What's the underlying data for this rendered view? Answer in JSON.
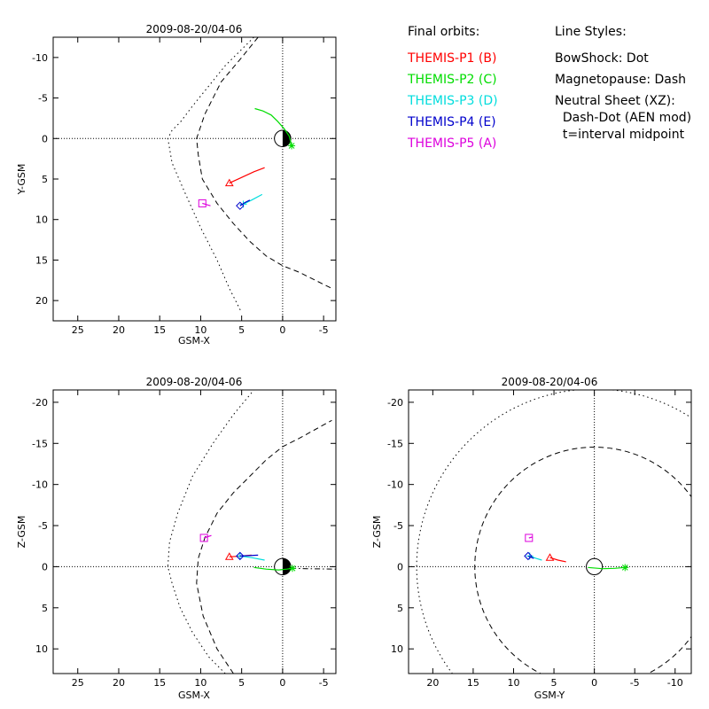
{
  "legend": {
    "orbits_title": "Final orbits:",
    "probes": [
      {
        "label": "THEMIS-P1 (B)",
        "color": "#ff0000"
      },
      {
        "label": "THEMIS-P2 (C)",
        "color": "#00dd00"
      },
      {
        "label": "THEMIS-P3 (D)",
        "color": "#00dddd"
      },
      {
        "label": "THEMIS-P4 (E)",
        "color": "#0000cc"
      },
      {
        "label": "THEMIS-P5 (A)",
        "color": "#dd00dd"
      }
    ],
    "styles_title": "Line Styles:",
    "styles": [
      "BowShock: Dot",
      "Magnetopause: Dash",
      "Neutral Sheet (XZ):",
      "  Dash-Dot (AEN mod)",
      "  t=interval midpoint"
    ]
  },
  "chart_data": [
    {
      "id": "xy",
      "type": "line",
      "title": "2009-08-20/04-06",
      "xlabel": "GSM-X",
      "ylabel": "Y-GSM",
      "xlim": [
        28,
        -6.5
      ],
      "ylim": [
        -12.5,
        22.5
      ],
      "xticks": [
        25,
        20,
        15,
        10,
        5,
        0,
        -5
      ],
      "yticks": [
        -10,
        -5,
        0,
        5,
        10,
        15,
        20
      ],
      "earth": true,
      "boundaries": [
        {
          "name": "bowshock",
          "style": "dot",
          "x": [
            3.5,
            5,
            7,
            9,
            11,
            12.5,
            13.5,
            14,
            13.5,
            12,
            10,
            8,
            6.5,
            5
          ],
          "y": [
            -12.5,
            -11,
            -9,
            -6.5,
            -4,
            -2,
            -1,
            0,
            3,
            6.5,
            11,
            15,
            18.5,
            21.5
          ]
        },
        {
          "name": "magnetopause",
          "style": "dash",
          "x": [
            3,
            5,
            7.5,
            9.5,
            10.5,
            10.3,
            9.8,
            8,
            6,
            4,
            2,
            0,
            -2,
            -4,
            -6
          ],
          "y": [
            -12.5,
            -10,
            -7,
            -3,
            0,
            2,
            5,
            8,
            10.5,
            12.7,
            14.5,
            15.7,
            16.5,
            17.5,
            18.5
          ]
        }
      ],
      "orbits": [
        {
          "probe": 0,
          "x": [
            6.5,
            5,
            3.5,
            2.2
          ],
          "y": [
            5.5,
            4.8,
            4.1,
            3.6
          ],
          "marker": "triangle"
        },
        {
          "probe": 1,
          "x": [
            3.4,
            2.4,
            1.4,
            0.6,
            -0.2,
            -0.8,
            -1.1
          ],
          "y": [
            -3.7,
            -3.4,
            -2.9,
            -2.1,
            -1.2,
            -0.3,
            0.9
          ],
          "marker": "star"
        },
        {
          "probe": 2,
          "x": [
            4.8,
            3.8,
            2.5
          ],
          "y": [
            8.1,
            7.6,
            6.9
          ],
          "marker": "plus"
        },
        {
          "probe": 3,
          "x": [
            5.2,
            4.6,
            4.0
          ],
          "y": [
            8.3,
            7.9,
            7.6
          ],
          "marker": "diamond"
        },
        {
          "probe": 4,
          "x": [
            9.8,
            8.8
          ],
          "y": [
            8.0,
            8.3
          ],
          "marker": "square"
        }
      ]
    },
    {
      "id": "xz",
      "type": "line",
      "title": "2009-08-20/04-06",
      "xlabel": "GSM-X",
      "ylabel": "Z-GSM",
      "xlim": [
        28,
        -6.5
      ],
      "ylim": [
        -21.5,
        13
      ],
      "xticks": [
        25,
        20,
        15,
        10,
        5,
        0,
        -5
      ],
      "yticks": [
        -20,
        -15,
        -10,
        -5,
        0,
        5,
        10
      ],
      "earth": true,
      "boundaries": [
        {
          "name": "bowshock",
          "style": "dot",
          "x": [
            7,
            9,
            11,
            12.5,
            13.5,
            14,
            13.8,
            12.8,
            11,
            8.5,
            6,
            3.5
          ],
          "y": [
            13,
            11,
            8,
            5,
            2,
            0,
            -3,
            -6.5,
            -11,
            -15,
            -18.5,
            -21.5
          ]
        },
        {
          "name": "magnetopause",
          "style": "dash",
          "x": [
            6,
            8,
            9.7,
            10.5,
            10.3,
            9.5,
            8,
            6,
            4,
            2,
            0,
            -2,
            -4,
            -6
          ],
          "y": [
            13,
            10,
            6,
            2,
            -1,
            -3.5,
            -6.5,
            -9,
            -11,
            -13,
            -14.6,
            -15.6,
            -16.7,
            -17.8
          ]
        },
        {
          "name": "neutral-sheet",
          "style": "dashdot",
          "x": [
            -1,
            -3,
            -6.5
          ],
          "y": [
            0.2,
            0.25,
            0.3
          ]
        }
      ],
      "orbits": [
        {
          "probe": 0,
          "x": [
            6.5,
            5,
            3.8
          ],
          "y": [
            -1.2,
            -1.3,
            -1.4
          ],
          "marker": "triangle"
        },
        {
          "probe": 1,
          "x": [
            3.5,
            2,
            0.5,
            -0.5,
            -1.2
          ],
          "y": [
            0.1,
            0.3,
            0.4,
            0.3,
            0.2
          ],
          "marker": "star"
        },
        {
          "probe": 2,
          "x": [
            5.2,
            3.8,
            2.2
          ],
          "y": [
            -1.3,
            -1.1,
            -0.8
          ],
          "marker": "plus"
        },
        {
          "probe": 3,
          "x": [
            5.2,
            4,
            3
          ],
          "y": [
            -1.3,
            -1.35,
            -1.4
          ],
          "marker": "diamond"
        },
        {
          "probe": 4,
          "x": [
            9.6,
            8.7
          ],
          "y": [
            -3.5,
            -3.8
          ],
          "marker": "square"
        }
      ]
    },
    {
      "id": "yz",
      "type": "line",
      "title": "2009-08-20/04-06",
      "xlabel": "GSM-Y",
      "ylabel": "Z-GSM",
      "xlim": [
        23,
        -12
      ],
      "ylim": [
        -21.5,
        13
      ],
      "xticks": [
        20,
        15,
        10,
        5,
        0,
        -5,
        -10
      ],
      "yticks": [
        -20,
        -15,
        -10,
        -5,
        0,
        5,
        10
      ],
      "earth": false,
      "boundaries": [
        {
          "name": "bowshock",
          "style": "dot",
          "circle": [
            0,
            0,
            22
          ]
        },
        {
          "name": "magnetopause",
          "style": "dash",
          "circle": [
            0,
            0,
            14.8
          ]
        }
      ],
      "orbits": [
        {
          "probe": 0,
          "x": [
            5.5,
            4.5,
            3.5
          ],
          "y": [
            -1.1,
            -0.8,
            -0.6
          ],
          "marker": "triangle"
        },
        {
          "probe": 1,
          "x": [
            0.8,
            -1,
            -2.5,
            -3.8
          ],
          "y": [
            0.1,
            0.25,
            0.2,
            0.1
          ],
          "marker": "star"
        },
        {
          "probe": 2,
          "x": [
            8,
            7.2,
            6.5
          ],
          "y": [
            -1.3,
            -1.0,
            -0.8
          ],
          "marker": "plus"
        },
        {
          "probe": 3,
          "x": [
            8.2,
            7.5
          ],
          "y": [
            -1.3,
            -1.0
          ],
          "marker": "diamond"
        },
        {
          "probe": 4,
          "x": [
            8.1,
            7.7
          ],
          "y": [
            -3.5,
            -3.6
          ],
          "marker": "square"
        }
      ]
    }
  ]
}
